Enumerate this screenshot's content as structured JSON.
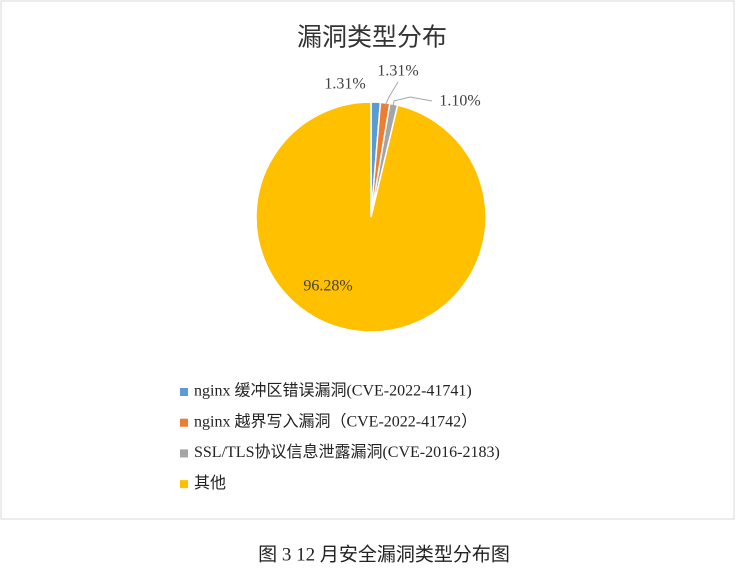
{
  "chart_data": {
    "type": "pie",
    "title": "漏洞类型分布",
    "categories": [
      "nginx 缓冲区错误漏洞(CVE-2022-41741)",
      "nginx 越界写入漏洞（CVE-2022-41742）",
      "SSL/TLS协议信息泄露漏洞(CVE-2016-2183)",
      "其他"
    ],
    "values": [
      1.31,
      1.31,
      1.1,
      96.28
    ],
    "value_labels": [
      "1.31%",
      "1.31%",
      "1.10%",
      "96.28%"
    ],
    "colors": [
      "#5b9bd5",
      "#ed7d31",
      "#a5a5a5",
      "#ffc000"
    ],
    "legend": "bottom",
    "caption": "图 3   12 月安全漏洞类型分布图"
  }
}
